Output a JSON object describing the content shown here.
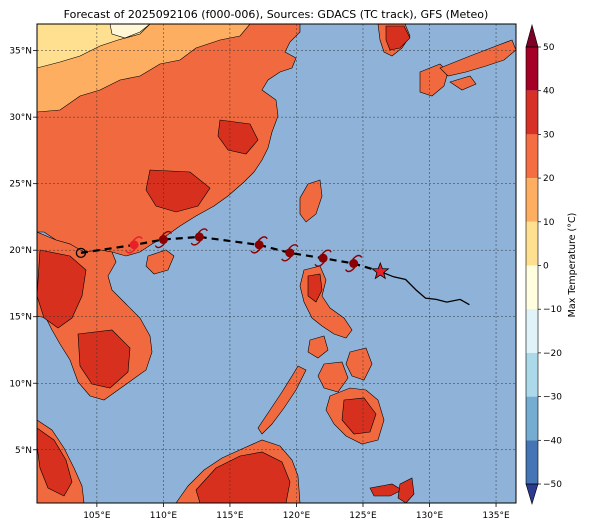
{
  "title": "Forecast of 2025092106 (f000-006), Sources: GDACS (TC track), GFS (Meteo)",
  "map": {
    "lon_range": [
      100.5,
      136.5
    ],
    "lat_range": [
      1,
      37
    ],
    "lon_ticks": [
      {
        "lon": 105,
        "label": "105°E"
      },
      {
        "lon": 110,
        "label": "110°E"
      },
      {
        "lon": 115,
        "label": "115°E"
      },
      {
        "lon": 120,
        "label": "120°E"
      },
      {
        "lon": 125,
        "label": "125°E"
      },
      {
        "lon": 130,
        "label": "130°E"
      },
      {
        "lon": 135,
        "label": "135°E"
      }
    ],
    "lat_ticks": [
      {
        "lat": 5,
        "label": "5°N"
      },
      {
        "lat": 10,
        "label": "10°N"
      },
      {
        "lat": 15,
        "label": "15°N"
      },
      {
        "lat": 20,
        "label": "20°N"
      },
      {
        "lat": 25,
        "label": "25°N"
      },
      {
        "lat": 30,
        "label": "30°N"
      },
      {
        "lat": 35,
        "label": "35°N"
      }
    ],
    "ocean_color": "#8fb3d8",
    "land_hot": "#d7301f",
    "land_warm": "#f16a3f",
    "land_mild": "#fdae61",
    "land_cool": "#fee090",
    "land_cold": "#fff7d6"
  },
  "colorbar": {
    "label": "Max Temperature (°C)",
    "range": [
      -50,
      50
    ],
    "ticks": [
      {
        "value": 50,
        "label": "50"
      },
      {
        "value": 40,
        "label": "40"
      },
      {
        "value": 30,
        "label": "30"
      },
      {
        "value": 20,
        "label": "20"
      },
      {
        "value": 10,
        "label": "10"
      },
      {
        "value": 0,
        "label": "0"
      },
      {
        "value": -10,
        "label": "−10"
      },
      {
        "value": -20,
        "label": "−20"
      },
      {
        "value": -30,
        "label": "−30"
      },
      {
        "value": -40,
        "label": "−40"
      },
      {
        "value": -50,
        "label": "−50"
      }
    ],
    "levels": [
      {
        "from": 40,
        "to": 50,
        "color": "#a50026"
      },
      {
        "from": 30,
        "to": 40,
        "color": "#d73027"
      },
      {
        "from": 20,
        "to": 30,
        "color": "#f46d43"
      },
      {
        "from": 10,
        "to": 20,
        "color": "#fdae61"
      },
      {
        "from": 0,
        "to": 10,
        "color": "#fee090"
      },
      {
        "from": -10,
        "to": 0,
        "color": "#ffffdf"
      },
      {
        "from": -20,
        "to": -10,
        "color": "#e0f3f8"
      },
      {
        "from": -30,
        "to": -20,
        "color": "#abd9e9"
      },
      {
        "from": -40,
        "to": -30,
        "color": "#74add1"
      },
      {
        "from": -50,
        "to": -40,
        "color": "#4575b4"
      }
    ],
    "under_color": "#2c3b8f",
    "over_color": "#7f0026"
  },
  "track": {
    "forecast_points": [
      {
        "lon": 103.8,
        "lat": 19.8
      },
      {
        "lon": 107.8,
        "lat": 20.4
      },
      {
        "lon": 110.0,
        "lat": 20.8
      },
      {
        "lon": 112.7,
        "lat": 21.0
      },
      {
        "lon": 117.2,
        "lat": 20.4
      },
      {
        "lon": 119.5,
        "lat": 19.8
      },
      {
        "lon": 122.0,
        "lat": 19.4
      },
      {
        "lon": 124.3,
        "lat": 19.0
      },
      {
        "lon": 126.3,
        "lat": 18.4
      }
    ],
    "observed_points": [
      {
        "lon": 126.3,
        "lat": 18.4
      },
      {
        "lon": 127.3,
        "lat": 18.0
      },
      {
        "lon": 128.2,
        "lat": 17.8
      },
      {
        "lon": 129.0,
        "lat": 17.0
      },
      {
        "lon": 129.7,
        "lat": 16.4
      },
      {
        "lon": 130.5,
        "lat": 16.3
      },
      {
        "lon": 131.3,
        "lat": 16.1
      },
      {
        "lon": 132.3,
        "lat": 16.3
      },
      {
        "lon": 133.0,
        "lat": 15.9
      }
    ],
    "current_position": {
      "lon": 126.3,
      "lat": 18.4
    },
    "track_color": "#000000",
    "marker_color": "#8b0000",
    "star_color": "#e8202a"
  }
}
